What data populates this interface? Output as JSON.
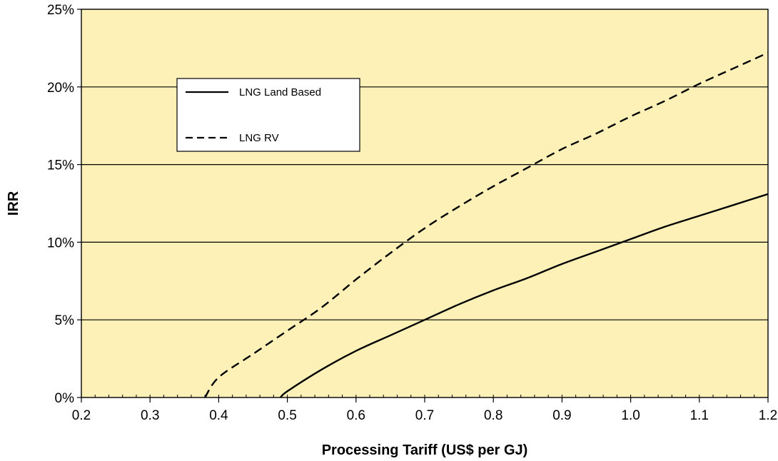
{
  "chart_data": {
    "type": "line",
    "title": "",
    "xlabel": "Processing Tariff (US$ per GJ)",
    "ylabel": "IRR",
    "xlim": [
      0.2,
      1.2
    ],
    "ylim": [
      0,
      25
    ],
    "x_ticks": [
      0.2,
      0.3,
      0.4,
      0.5,
      0.6,
      0.7,
      0.8,
      0.9,
      1.0,
      1.1,
      1.2
    ],
    "x_tick_labels": [
      "0.2",
      "0.3",
      "0.4",
      "0.5",
      "0.6",
      "0.7",
      "0.8",
      "0.9",
      "1.0",
      "1.1",
      "1.2"
    ],
    "y_ticks": [
      0,
      5,
      10,
      15,
      20,
      25
    ],
    "y_tick_labels": [
      "0%",
      "5%",
      "10%",
      "15%",
      "20%",
      "25%"
    ],
    "grid": "horizontal",
    "background_color": "#fdf1b8",
    "legend_position": "upper-left",
    "series": [
      {
        "name": "LNG Land Based",
        "style": "solid",
        "color": "#000000",
        "x": [
          0.49,
          0.5,
          0.55,
          0.6,
          0.65,
          0.7,
          0.75,
          0.8,
          0.85,
          0.9,
          0.95,
          1.0,
          1.05,
          1.1,
          1.15,
          1.2
        ],
        "y": [
          0.0,
          0.4,
          1.8,
          3.0,
          4.0,
          5.0,
          6.0,
          6.9,
          7.7,
          8.6,
          9.4,
          10.2,
          11.0,
          11.7,
          12.4,
          13.1
        ]
      },
      {
        "name": "LNG RV",
        "style": "dashed",
        "color": "#000000",
        "x": [
          0.38,
          0.4,
          0.45,
          0.5,
          0.55,
          0.6,
          0.65,
          0.7,
          0.75,
          0.8,
          0.85,
          0.9,
          0.95,
          1.0,
          1.05,
          1.1,
          1.15,
          1.2
        ],
        "y": [
          0.0,
          1.3,
          2.8,
          4.3,
          5.8,
          7.6,
          9.3,
          10.9,
          12.3,
          13.6,
          14.8,
          16.0,
          17.0,
          18.1,
          19.1,
          20.2,
          21.2,
          22.2
        ]
      }
    ]
  }
}
